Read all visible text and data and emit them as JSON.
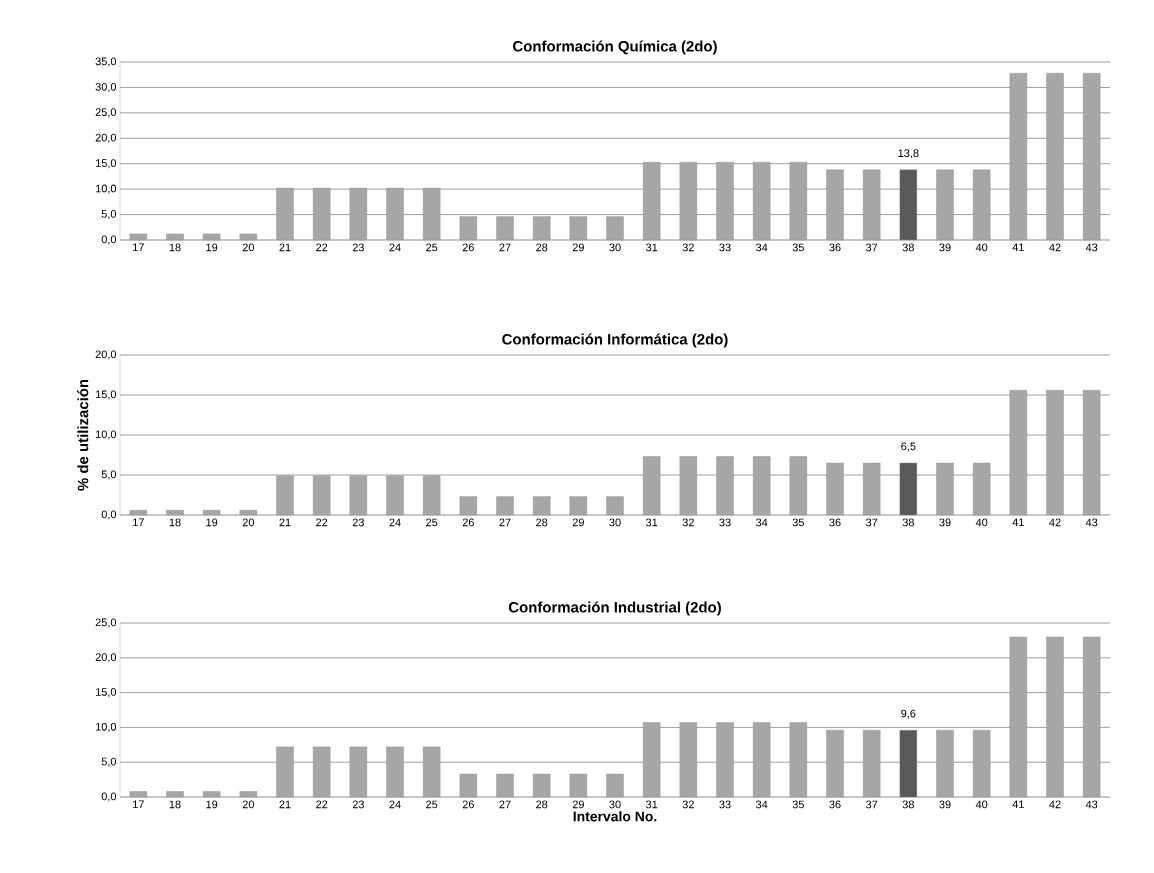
{
  "chart_data": [
    {
      "type": "bar",
      "title": "Conformación Química (2do)",
      "categories": [
        "17",
        "18",
        "19",
        "20",
        "21",
        "22",
        "23",
        "24",
        "25",
        "26",
        "27",
        "28",
        "29",
        "30",
        "31",
        "32",
        "33",
        "34",
        "35",
        "36",
        "37",
        "38",
        "39",
        "40",
        "41",
        "42",
        "43"
      ],
      "values": [
        1.2,
        1.2,
        1.2,
        1.2,
        10.2,
        10.2,
        10.2,
        10.2,
        10.2,
        4.6,
        4.6,
        4.6,
        4.6,
        4.6,
        15.3,
        15.3,
        15.3,
        15.3,
        15.3,
        13.8,
        13.8,
        13.8,
        13.8,
        13.8,
        32.8,
        32.8,
        32.8
      ],
      "colors": [
        "#a6a6a6",
        "#a6a6a6",
        "#a6a6a6",
        "#a6a6a6",
        "#a6a6a6",
        "#a6a6a6",
        "#a6a6a6",
        "#a6a6a6",
        "#a6a6a6",
        "#a6a6a6",
        "#a6a6a6",
        "#a6a6a6",
        "#a6a6a6",
        "#a6a6a6",
        "#a6a6a6",
        "#a6a6a6",
        "#a6a6a6",
        "#a6a6a6",
        "#a6a6a6",
        "#a6a6a6",
        "#a6a6a6",
        "#595959",
        "#a6a6a6",
        "#a6a6a6",
        "#a6a6a6",
        "#a6a6a6",
        "#a6a6a6"
      ],
      "value_labels": [
        null,
        null,
        null,
        null,
        null,
        null,
        null,
        null,
        null,
        null,
        null,
        null,
        null,
        null,
        null,
        null,
        null,
        null,
        null,
        null,
        null,
        "13,8",
        null,
        null,
        null,
        null,
        null
      ],
      "ylim": [
        0,
        35
      ],
      "yticks": [
        {
          "value": 0,
          "label": "0,0"
        },
        {
          "value": 5,
          "label": "5,0"
        },
        {
          "value": 10,
          "label": "10,0"
        },
        {
          "value": 15,
          "label": "15,0"
        },
        {
          "value": 20,
          "label": "20,0"
        },
        {
          "value": 25,
          "label": "25,0"
        },
        {
          "value": 30,
          "label": "30,0"
        },
        {
          "value": 35,
          "label": "35,0"
        }
      ],
      "grid": "y"
    },
    {
      "type": "bar",
      "title": "Conformación Informática (2do)",
      "ylabel": "% de utilización",
      "categories": [
        "17",
        "18",
        "19",
        "20",
        "21",
        "22",
        "23",
        "24",
        "25",
        "26",
        "27",
        "28",
        "29",
        "30",
        "31",
        "32",
        "33",
        "34",
        "35",
        "36",
        "37",
        "38",
        "39",
        "40",
        "41",
        "42",
        "43"
      ],
      "values": [
        0.6,
        0.6,
        0.6,
        0.6,
        4.9,
        4.9,
        4.9,
        4.9,
        4.9,
        2.3,
        2.3,
        2.3,
        2.3,
        2.3,
        7.3,
        7.3,
        7.3,
        7.3,
        7.3,
        6.5,
        6.5,
        6.5,
        6.5,
        6.5,
        15.6,
        15.6,
        15.6
      ],
      "colors": [
        "#a6a6a6",
        "#a6a6a6",
        "#a6a6a6",
        "#a6a6a6",
        "#a6a6a6",
        "#a6a6a6",
        "#a6a6a6",
        "#a6a6a6",
        "#a6a6a6",
        "#a6a6a6",
        "#a6a6a6",
        "#a6a6a6",
        "#a6a6a6",
        "#a6a6a6",
        "#a6a6a6",
        "#a6a6a6",
        "#a6a6a6",
        "#a6a6a6",
        "#a6a6a6",
        "#a6a6a6",
        "#a6a6a6",
        "#595959",
        "#a6a6a6",
        "#a6a6a6",
        "#a6a6a6",
        "#a6a6a6",
        "#a6a6a6"
      ],
      "value_labels": [
        null,
        null,
        null,
        null,
        null,
        null,
        null,
        null,
        null,
        null,
        null,
        null,
        null,
        null,
        null,
        null,
        null,
        null,
        null,
        null,
        null,
        "6,5",
        null,
        null,
        null,
        null,
        null
      ],
      "ylim": [
        0,
        20
      ],
      "yticks": [
        {
          "value": 0,
          "label": "0,0"
        },
        {
          "value": 5,
          "label": "5,0"
        },
        {
          "value": 10,
          "label": "10,0"
        },
        {
          "value": 15,
          "label": "15,0"
        },
        {
          "value": 20,
          "label": "20,0"
        }
      ],
      "grid": "y"
    },
    {
      "type": "bar",
      "title": "Conformación Industrial (2do)",
      "xlabel": "Intervalo No.",
      "categories": [
        "17",
        "18",
        "19",
        "20",
        "21",
        "22",
        "23",
        "24",
        "25",
        "26",
        "27",
        "28",
        "29",
        "30",
        "31",
        "32",
        "33",
        "34",
        "35",
        "36",
        "37",
        "38",
        "39",
        "40",
        "41",
        "42",
        "43"
      ],
      "values": [
        0.8,
        0.8,
        0.8,
        0.8,
        7.2,
        7.2,
        7.2,
        7.2,
        7.2,
        3.3,
        3.3,
        3.3,
        3.3,
        3.3,
        10.7,
        10.7,
        10.7,
        10.7,
        10.7,
        9.6,
        9.6,
        9.6,
        9.6,
        9.6,
        23.0,
        23.0,
        23.0
      ],
      "colors": [
        "#a6a6a6",
        "#a6a6a6",
        "#a6a6a6",
        "#a6a6a6",
        "#a6a6a6",
        "#a6a6a6",
        "#a6a6a6",
        "#a6a6a6",
        "#a6a6a6",
        "#a6a6a6",
        "#a6a6a6",
        "#a6a6a6",
        "#a6a6a6",
        "#a6a6a6",
        "#a6a6a6",
        "#a6a6a6",
        "#a6a6a6",
        "#a6a6a6",
        "#a6a6a6",
        "#a6a6a6",
        "#a6a6a6",
        "#595959",
        "#a6a6a6",
        "#a6a6a6",
        "#a6a6a6",
        "#a6a6a6",
        "#a6a6a6"
      ],
      "value_labels": [
        null,
        null,
        null,
        null,
        null,
        null,
        null,
        null,
        null,
        null,
        null,
        null,
        null,
        null,
        null,
        null,
        null,
        null,
        null,
        null,
        null,
        "9,6",
        null,
        null,
        null,
        null,
        null
      ],
      "ylim": [
        0,
        25
      ],
      "yticks": [
        {
          "value": 0,
          "label": "0,0"
        },
        {
          "value": 5,
          "label": "5,0"
        },
        {
          "value": 10,
          "label": "10,0"
        },
        {
          "value": 15,
          "label": "15,0"
        },
        {
          "value": 20,
          "label": "20,0"
        },
        {
          "value": 25,
          "label": "25,0"
        }
      ],
      "grid": "y"
    }
  ]
}
